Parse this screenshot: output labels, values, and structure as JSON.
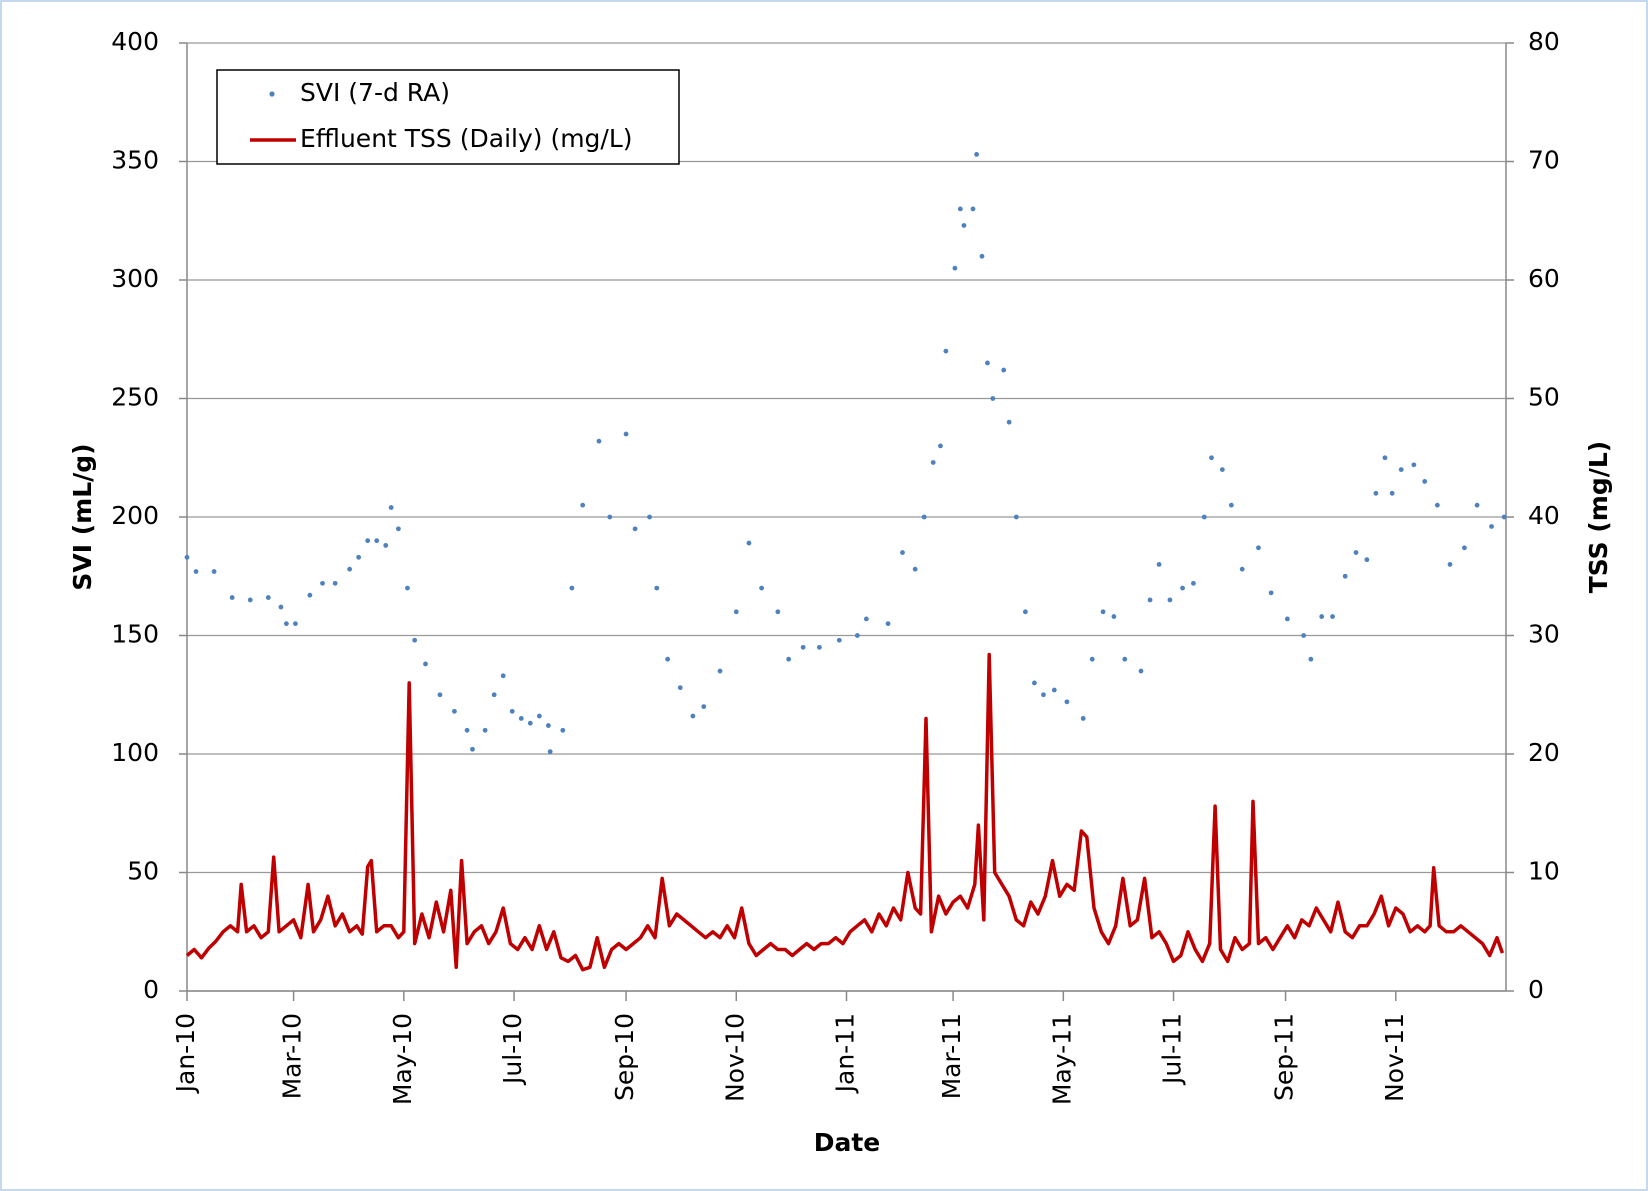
{
  "chart_data": {
    "type": "scatter",
    "xlabel": "Date",
    "ylabel": "SVI (mL/g)",
    "y2label": "TSS (mg/L)",
    "xlim": [
      0,
      730
    ],
    "xticks": [
      {
        "value": 0,
        "label": "Jan-10"
      },
      {
        "value": 59,
        "label": "Mar-10"
      },
      {
        "value": 120,
        "label": "May-10"
      },
      {
        "value": 181,
        "label": "Jul-10"
      },
      {
        "value": 243,
        "label": "Sep-10"
      },
      {
        "value": 304,
        "label": "Nov-10"
      },
      {
        "value": 365,
        "label": "Jan-11"
      },
      {
        "value": 424,
        "label": "Mar-11"
      },
      {
        "value": 485,
        "label": "May-11"
      },
      {
        "value": 546,
        "label": "Jul-11"
      },
      {
        "value": 608,
        "label": "Sep-11"
      },
      {
        "value": 669,
        "label": "Nov-11"
      }
    ],
    "ylim": [
      0,
      400
    ],
    "yticks": [
      0,
      50,
      100,
      150,
      200,
      250,
      300,
      350,
      400
    ],
    "y2lim": [
      0,
      80
    ],
    "y2ticks": [
      0,
      10,
      20,
      30,
      40,
      50,
      60,
      70,
      80
    ],
    "grid": true,
    "legend": "upper left",
    "series": [
      {
        "name": "SVI (7-d RA)",
        "type": "scatter",
        "color": "#4f81bd",
        "x": [
          0,
          5,
          15,
          25,
          35,
          45,
          52,
          55,
          60,
          68,
          75,
          82,
          90,
          95,
          100,
          105,
          110,
          113,
          117,
          122,
          126,
          132,
          140,
          148,
          155,
          158,
          165,
          170,
          175,
          180,
          185,
          190,
          195,
          200,
          201,
          208,
          213,
          219,
          228,
          234,
          243,
          248,
          256,
          260,
          266,
          273,
          280,
          286,
          295,
          304,
          311,
          318,
          327,
          333,
          341,
          350,
          361,
          371,
          376,
          388,
          396,
          403,
          408,
          413,
          417,
          420,
          425,
          428,
          430,
          435,
          437,
          440,
          443,
          446,
          452,
          455,
          459,
          464,
          469,
          474,
          480,
          487,
          496,
          501,
          507,
          513,
          519,
          528,
          533,
          538,
          544,
          551,
          557,
          563,
          567,
          573,
          578,
          584,
          593,
          600,
          609,
          618,
          622,
          628,
          634,
          641,
          647,
          653,
          658,
          663,
          667,
          672,
          679,
          685,
          692,
          699,
          707,
          714,
          722,
          729
        ],
        "values": [
          183,
          177,
          177,
          166,
          165,
          166,
          162,
          155,
          155,
          167,
          172,
          172,
          178,
          183,
          190,
          190,
          188,
          204,
          195,
          170,
          148,
          138,
          125,
          118,
          110,
          102,
          110,
          125,
          133,
          118,
          115,
          113,
          116,
          112,
          101,
          110,
          170,
          205,
          232,
          200,
          235,
          195,
          200,
          170,
          140,
          128,
          116,
          120,
          135,
          160,
          189,
          170,
          160,
          140,
          145,
          145,
          148,
          150,
          157,
          155,
          185,
          178,
          200,
          223,
          230,
          270,
          305,
          330,
          323,
          330,
          353,
          310,
          265,
          250,
          262,
          240,
          200,
          160,
          130,
          125,
          127,
          122,
          115,
          140,
          160,
          158,
          140,
          135,
          165,
          180,
          165,
          170,
          172,
          200,
          225,
          220,
          205,
          178,
          187,
          168,
          157,
          150,
          140,
          158,
          158,
          175,
          185,
          182,
          210,
          225,
          210,
          220,
          222,
          215,
          205,
          180,
          187,
          205,
          196,
          200
        ]
      },
      {
        "name": "Effluent TSS (Daily) (mg/L)",
        "type": "line",
        "axis": "y2",
        "color": "#c00000",
        "x": [
          0,
          4,
          8,
          12,
          16,
          20,
          24,
          28,
          30,
          33,
          37,
          41,
          45,
          48,
          51,
          55,
          59,
          63,
          67,
          70,
          74,
          78,
          82,
          86,
          90,
          94,
          97,
          100,
          102,
          105,
          109,
          113,
          117,
          120,
          123,
          126,
          130,
          134,
          138,
          142,
          146,
          149,
          152,
          155,
          159,
          163,
          167,
          171,
          175,
          179,
          183,
          187,
          191,
          195,
          199,
          203,
          207,
          211,
          215,
          219,
          223,
          227,
          231,
          235,
          239,
          243,
          247,
          251,
          255,
          259,
          263,
          267,
          271,
          275,
          279,
          283,
          287,
          291,
          295,
          299,
          303,
          307,
          311,
          315,
          319,
          323,
          327,
          331,
          335,
          339,
          343,
          347,
          351,
          355,
          359,
          363,
          367,
          371,
          375,
          379,
          383,
          387,
          391,
          395,
          399,
          403,
          406,
          409,
          412,
          416,
          420,
          424,
          428,
          432,
          436,
          438,
          441,
          444,
          447,
          451,
          455,
          459,
          463,
          467,
          471,
          475,
          479,
          483,
          487,
          491,
          495,
          498,
          502,
          506,
          510,
          514,
          518,
          522,
          526,
          530,
          534,
          538,
          542,
          546,
          550,
          554,
          558,
          562,
          566,
          569,
          572,
          576,
          580,
          584,
          588,
          590,
          593,
          597,
          601,
          605,
          609,
          613,
          617,
          621,
          625,
          629,
          633,
          637,
          641,
          645,
          649,
          653,
          657,
          661,
          665,
          669,
          673,
          677,
          681,
          685,
          688,
          690,
          693,
          697,
          701,
          705,
          709,
          713,
          717,
          721,
          725,
          728
        ],
        "values": [
          3,
          3.5,
          2.8,
          3.6,
          4.2,
          5,
          5.5,
          5,
          9,
          5,
          5.5,
          4.5,
          5,
          11.3,
          5,
          5.5,
          6,
          4.5,
          9,
          5,
          6,
          8,
          5.5,
          6.5,
          5,
          5.5,
          4.8,
          10.5,
          11,
          5,
          5.5,
          5.5,
          4.5,
          5,
          26,
          4,
          6.5,
          4.5,
          7.5,
          5,
          8.5,
          2,
          11,
          4,
          5,
          5.5,
          4,
          5,
          7,
          4,
          3.5,
          4.5,
          3.5,
          5.5,
          3.5,
          5,
          2.8,
          2.5,
          3,
          1.8,
          2,
          4.5,
          2,
          3.5,
          4,
          3.5,
          4,
          4.5,
          5.5,
          4.5,
          9.5,
          5.5,
          6.5,
          6,
          5.5,
          5,
          4.5,
          5,
          4.5,
          5.5,
          4.5,
          7,
          4,
          3,
          3.5,
          4,
          3.5,
          3.5,
          3,
          3.5,
          4,
          3.5,
          4,
          4,
          4.5,
          4,
          5,
          5.5,
          6,
          5,
          6.5,
          5.5,
          7,
          6,
          10,
          7,
          6.5,
          23,
          5,
          8,
          6.5,
          7.5,
          8,
          7,
          9,
          14,
          6,
          28.4,
          10,
          9,
          8,
          6,
          5.5,
          7.5,
          6.5,
          8,
          11,
          8,
          9,
          8.5,
          13.5,
          13,
          7,
          5,
          4,
          5.5,
          9.5,
          5.5,
          6,
          9.5,
          4.5,
          5,
          4,
          2.5,
          3,
          5,
          3.5,
          2.5,
          4,
          15.6,
          3.5,
          2.5,
          4.5,
          3.5,
          4,
          16,
          4,
          4.5,
          3.5,
          4.5,
          5.5,
          4.5,
          6,
          5.5,
          7,
          6,
          5,
          7.5,
          5,
          4.5,
          5.5,
          5.5,
          6.5,
          8,
          5.5,
          7,
          6.5,
          5,
          5.5,
          5,
          5.5,
          10.4,
          5.5,
          5,
          5,
          5.5,
          5,
          4.5,
          4,
          3,
          4.5,
          3.2
        ]
      }
    ]
  }
}
